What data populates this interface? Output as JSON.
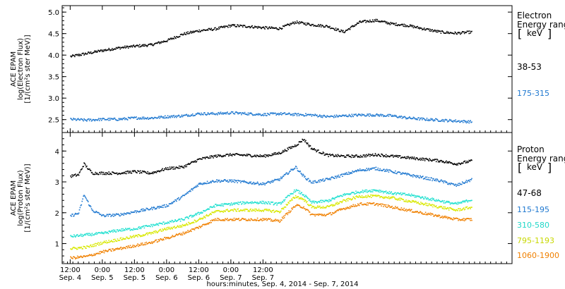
{
  "chart_data": [
    {
      "type": "scatter",
      "panel": "electron",
      "ylabel_lines": [
        "ACE EPAM",
        "log(Electron Flux)",
        "[1/(cm²s ster MeV)]"
      ],
      "ylim": [
        2.2,
        5.15
      ],
      "yticks": [
        "2.5",
        "3.0",
        "3.5",
        "4.0",
        "4.5",
        "5.0"
      ],
      "legend_title": "Electron",
      "legend_subtitle": "Energy ranges",
      "legend_unit": "keV",
      "series": [
        {
          "name": "38-53",
          "color": "#000000",
          "points": [
            [
              0,
              3.98
            ],
            [
              6,
              4.05
            ],
            [
              12,
              4.12
            ],
            [
              18,
              4.18
            ],
            [
              24,
              4.22
            ],
            [
              30,
              4.25
            ],
            [
              36,
              4.35
            ],
            [
              42,
              4.5
            ],
            [
              48,
              4.58
            ],
            [
              54,
              4.62
            ],
            [
              60,
              4.7
            ],
            [
              66,
              4.68
            ],
            [
              72,
              4.65
            ],
            [
              78,
              4.63
            ],
            [
              84,
              4.78
            ],
            [
              90,
              4.72
            ],
            [
              96,
              4.68
            ],
            [
              102,
              4.55
            ],
            [
              108,
              4.78
            ],
            [
              114,
              4.82
            ],
            [
              120,
              4.74
            ],
            [
              126,
              4.7
            ],
            [
              132,
              4.62
            ],
            [
              138,
              4.55
            ],
            [
              144,
              4.52
            ],
            [
              150,
              4.55
            ]
          ]
        },
        {
          "name": "175-315",
          "color": "#1f78d0",
          "points": [
            [
              0,
              2.52
            ],
            [
              6,
              2.5
            ],
            [
              12,
              2.52
            ],
            [
              18,
              2.52
            ],
            [
              24,
              2.55
            ],
            [
              30,
              2.55
            ],
            [
              36,
              2.58
            ],
            [
              42,
              2.6
            ],
            [
              48,
              2.65
            ],
            [
              54,
              2.65
            ],
            [
              60,
              2.67
            ],
            [
              66,
              2.65
            ],
            [
              72,
              2.63
            ],
            [
              78,
              2.65
            ],
            [
              84,
              2.63
            ],
            [
              90,
              2.62
            ],
            [
              96,
              2.58
            ],
            [
              102,
              2.6
            ],
            [
              108,
              2.62
            ],
            [
              114,
              2.62
            ],
            [
              120,
              2.6
            ],
            [
              126,
              2.55
            ],
            [
              132,
              2.52
            ],
            [
              138,
              2.5
            ],
            [
              144,
              2.48
            ],
            [
              150,
              2.46
            ]
          ]
        }
      ]
    },
    {
      "type": "scatter",
      "panel": "proton",
      "ylabel_lines": [
        "ACE EPAM",
        "log(Proton Flux)",
        "[1/(cm²s ster MeV)]"
      ],
      "ylim": [
        0.35,
        4.6
      ],
      "yticks": [
        "1",
        "2",
        "3",
        "4"
      ],
      "legend_title": "Proton",
      "legend_subtitle": "Energy ranges",
      "legend_unit": "keV",
      "series": [
        {
          "name": "47-68",
          "color": "#000000",
          "points": [
            [
              0,
              3.2
            ],
            [
              3,
              3.25
            ],
            [
              5,
              3.6
            ],
            [
              8,
              3.3
            ],
            [
              12,
              3.3
            ],
            [
              18,
              3.3
            ],
            [
              24,
              3.35
            ],
            [
              30,
              3.3
            ],
            [
              36,
              3.45
            ],
            [
              42,
              3.5
            ],
            [
              48,
              3.75
            ],
            [
              54,
              3.85
            ],
            [
              60,
              3.9
            ],
            [
              66,
              3.88
            ],
            [
              72,
              3.85
            ],
            [
              78,
              3.95
            ],
            [
              84,
              4.2
            ],
            [
              87,
              4.4
            ],
            [
              90,
              4.1
            ],
            [
              96,
              3.88
            ],
            [
              102,
              3.85
            ],
            [
              108,
              3.85
            ],
            [
              114,
              3.9
            ],
            [
              120,
              3.85
            ],
            [
              126,
              3.8
            ],
            [
              132,
              3.75
            ],
            [
              138,
              3.7
            ],
            [
              144,
              3.6
            ],
            [
              150,
              3.7
            ]
          ]
        },
        {
          "name": "115-195",
          "color": "#1f78d0",
          "points": [
            [
              0,
              1.92
            ],
            [
              3,
              2.0
            ],
            [
              5,
              2.6
            ],
            [
              8,
              2.1
            ],
            [
              12,
              1.92
            ],
            [
              18,
              1.95
            ],
            [
              24,
              2.05
            ],
            [
              30,
              2.15
            ],
            [
              36,
              2.25
            ],
            [
              42,
              2.55
            ],
            [
              48,
              2.95
            ],
            [
              54,
              3.05
            ],
            [
              60,
              3.05
            ],
            [
              66,
              3.0
            ],
            [
              72,
              2.95
            ],
            [
              78,
              3.1
            ],
            [
              84,
              3.5
            ],
            [
              87,
              3.2
            ],
            [
              90,
              3.0
            ],
            [
              96,
              3.1
            ],
            [
              102,
              3.25
            ],
            [
              108,
              3.4
            ],
            [
              114,
              3.45
            ],
            [
              120,
              3.35
            ],
            [
              126,
              3.25
            ],
            [
              132,
              3.15
            ],
            [
              138,
              3.05
            ],
            [
              144,
              2.9
            ],
            [
              150,
              3.1
            ]
          ]
        },
        {
          "name": "310-580",
          "color": "#20e0d0",
          "points": [
            [
              0,
              1.25
            ],
            [
              6,
              1.3
            ],
            [
              12,
              1.35
            ],
            [
              18,
              1.45
            ],
            [
              24,
              1.5
            ],
            [
              30,
              1.6
            ],
            [
              36,
              1.7
            ],
            [
              42,
              1.8
            ],
            [
              48,
              2.0
            ],
            [
              54,
              2.25
            ],
            [
              60,
              2.3
            ],
            [
              66,
              2.35
            ],
            [
              72,
              2.35
            ],
            [
              78,
              2.3
            ],
            [
              84,
              2.75
            ],
            [
              87,
              2.6
            ],
            [
              90,
              2.35
            ],
            [
              96,
              2.4
            ],
            [
              102,
              2.6
            ],
            [
              108,
              2.7
            ],
            [
              114,
              2.75
            ],
            [
              120,
              2.65
            ],
            [
              126,
              2.6
            ],
            [
              132,
              2.5
            ],
            [
              138,
              2.4
            ],
            [
              144,
              2.3
            ],
            [
              150,
              2.45
            ]
          ]
        },
        {
          "name": "795-1193",
          "color": "#d8e800",
          "points": [
            [
              0,
              0.85
            ],
            [
              6,
              0.9
            ],
            [
              12,
              1.05
            ],
            [
              18,
              1.15
            ],
            [
              24,
              1.25
            ],
            [
              30,
              1.35
            ],
            [
              36,
              1.5
            ],
            [
              42,
              1.6
            ],
            [
              48,
              1.8
            ],
            [
              54,
              2.05
            ],
            [
              60,
              2.1
            ],
            [
              66,
              2.1
            ],
            [
              72,
              2.1
            ],
            [
              78,
              2.05
            ],
            [
              84,
              2.55
            ],
            [
              87,
              2.45
            ],
            [
              90,
              2.2
            ],
            [
              96,
              2.2
            ],
            [
              102,
              2.4
            ],
            [
              108,
              2.55
            ],
            [
              114,
              2.55
            ],
            [
              120,
              2.5
            ],
            [
              126,
              2.4
            ],
            [
              132,
              2.3
            ],
            [
              138,
              2.2
            ],
            [
              144,
              2.1
            ],
            [
              150,
              2.2
            ]
          ]
        },
        {
          "name": "1060-1900",
          "color": "#f08000",
          "points": [
            [
              0,
              0.55
            ],
            [
              6,
              0.6
            ],
            [
              12,
              0.75
            ],
            [
              18,
              0.85
            ],
            [
              24,
              0.95
            ],
            [
              30,
              1.05
            ],
            [
              36,
              1.2
            ],
            [
              42,
              1.35
            ],
            [
              48,
              1.55
            ],
            [
              54,
              1.8
            ],
            [
              60,
              1.8
            ],
            [
              66,
              1.8
            ],
            [
              72,
              1.8
            ],
            [
              78,
              1.75
            ],
            [
              84,
              2.25
            ],
            [
              87,
              2.2
            ],
            [
              90,
              1.95
            ],
            [
              96,
              1.95
            ],
            [
              102,
              2.15
            ],
            [
              108,
              2.3
            ],
            [
              114,
              2.3
            ],
            [
              120,
              2.2
            ],
            [
              126,
              2.1
            ],
            [
              132,
              2.0
            ],
            [
              138,
              1.9
            ],
            [
              144,
              1.8
            ],
            [
              150,
              1.8
            ]
          ]
        }
      ]
    }
  ],
  "x_axis": {
    "range_hours": [
      -3,
      165
    ],
    "ticks": [
      {
        "hours": 0,
        "time": "12:00",
        "date": "Sep. 4"
      },
      {
        "hours": 12,
        "time": "0:00",
        "date": "Sep. 5"
      },
      {
        "hours": 24,
        "time": "12:00",
        "date": "Sep. 5"
      },
      {
        "hours": 36,
        "time": "0:00",
        "date": "Sep. 6"
      },
      {
        "hours": 48,
        "time": "12:00",
        "date": "Sep. 6"
      },
      {
        "hours": 60,
        "time": "0:00",
        "date": "Sep. 7"
      },
      {
        "hours": 72,
        "time": "12:00",
        "date": "Sep. 7"
      }
    ],
    "label": "hours:minutes, Sep.  4, 2014 - Sep.  7, 2014"
  }
}
